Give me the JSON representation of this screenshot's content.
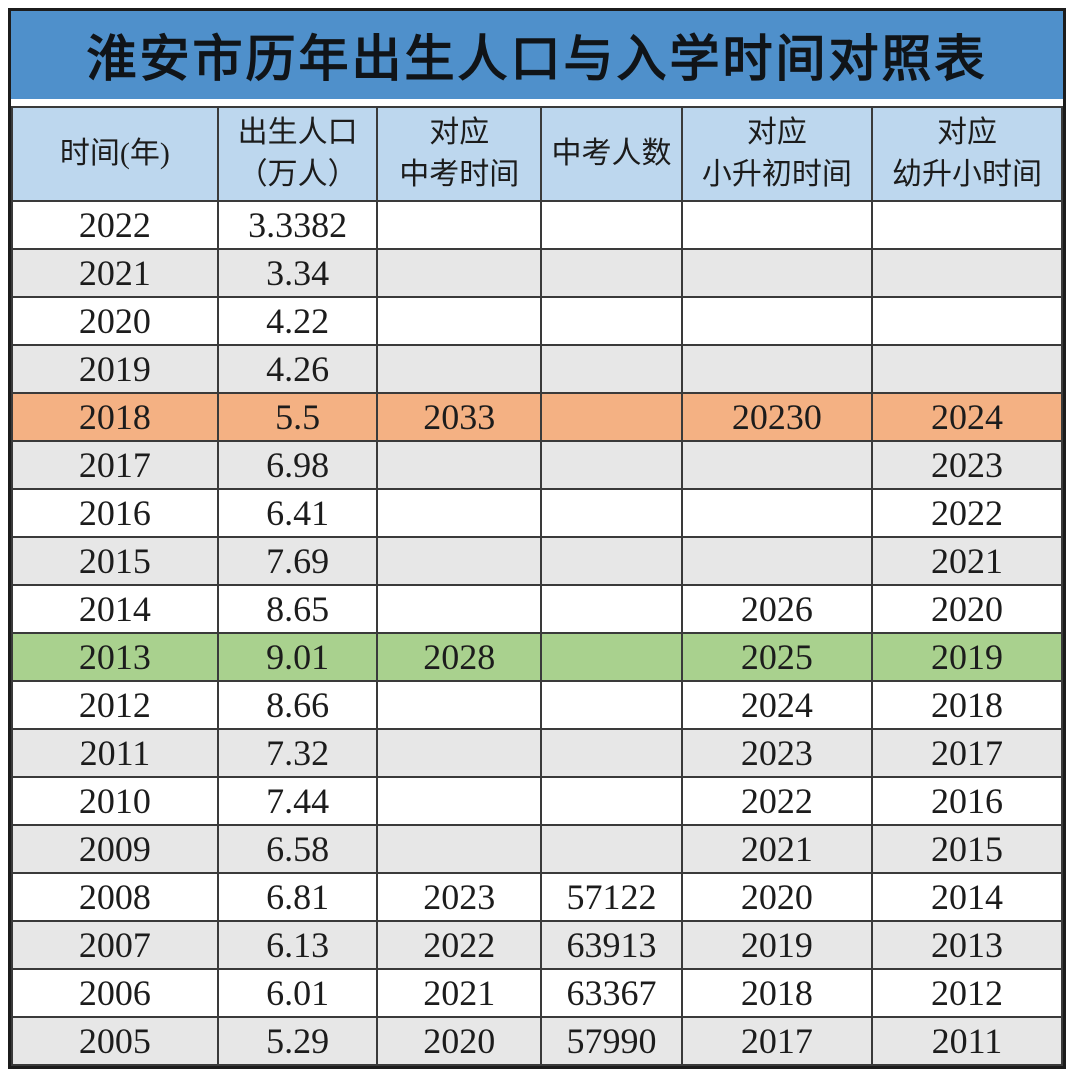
{
  "title": "淮安市历年出生人口与入学时间对照表",
  "colors": {
    "title_bg": "#4f90cb",
    "header_bg": "#bdd7ee",
    "stripe_bg": "#e7e7e7",
    "highlight_orange": "#f4b183",
    "highlight_green": "#a9d18e",
    "border": "#3a3a3a"
  },
  "chart_data": {
    "type": "table",
    "title": "淮安市历年出生人口与入学时间对照表",
    "columns": [
      "时间(年)",
      "出生人口（万人）",
      "对应中考时间",
      "中考人数",
      "对应小升初时间",
      "对应幼升小时间"
    ],
    "header_lines": [
      [
        "时间(年)"
      ],
      [
        "出生人口",
        "（万人）"
      ],
      [
        "对应",
        "中考时间"
      ],
      [
        "中考人数"
      ],
      [
        "对应",
        "小升初时间"
      ],
      [
        "对应",
        "幼升小时间"
      ]
    ],
    "column_ids": [
      "year",
      "birth-population",
      "zhongkao-year",
      "zhongkao-count",
      "xiaoshengchu-year",
      "youshengxiao-year"
    ],
    "rows": [
      {
        "cells": [
          "2022",
          "3.3382",
          "",
          "",
          "",
          ""
        ],
        "highlight": ""
      },
      {
        "cells": [
          "2021",
          "3.34",
          "",
          "",
          "",
          ""
        ],
        "highlight": ""
      },
      {
        "cells": [
          "2020",
          "4.22",
          "",
          "",
          "",
          ""
        ],
        "highlight": ""
      },
      {
        "cells": [
          "2019",
          "4.26",
          "",
          "",
          "",
          ""
        ],
        "highlight": ""
      },
      {
        "cells": [
          "2018",
          "5.5",
          "2033",
          "",
          "20230",
          "2024"
        ],
        "highlight": "orange"
      },
      {
        "cells": [
          "2017",
          "6.98",
          "",
          "",
          "",
          "2023"
        ],
        "highlight": ""
      },
      {
        "cells": [
          "2016",
          "6.41",
          "",
          "",
          "",
          "2022"
        ],
        "highlight": ""
      },
      {
        "cells": [
          "2015",
          "7.69",
          "",
          "",
          "",
          "2021"
        ],
        "highlight": ""
      },
      {
        "cells": [
          "2014",
          "8.65",
          "",
          "",
          "2026",
          "2020"
        ],
        "highlight": ""
      },
      {
        "cells": [
          "2013",
          "9.01",
          "2028",
          "",
          "2025",
          "2019"
        ],
        "highlight": "green"
      },
      {
        "cells": [
          "2012",
          "8.66",
          "",
          "",
          "2024",
          "2018"
        ],
        "highlight": ""
      },
      {
        "cells": [
          "2011",
          "7.32",
          "",
          "",
          "2023",
          "2017"
        ],
        "highlight": ""
      },
      {
        "cells": [
          "2010",
          "7.44",
          "",
          "",
          "2022",
          "2016"
        ],
        "highlight": ""
      },
      {
        "cells": [
          "2009",
          "6.58",
          "",
          "",
          "2021",
          "2015"
        ],
        "highlight": ""
      },
      {
        "cells": [
          "2008",
          "6.81",
          "2023",
          "57122",
          "2020",
          "2014"
        ],
        "highlight": ""
      },
      {
        "cells": [
          "2007",
          "6.13",
          "2022",
          "63913",
          "2019",
          "2013"
        ],
        "highlight": ""
      },
      {
        "cells": [
          "2006",
          "6.01",
          "2021",
          "63367",
          "2018",
          "2012"
        ],
        "highlight": ""
      },
      {
        "cells": [
          "2005",
          "5.29",
          "2020",
          "57990",
          "2017",
          "2011"
        ],
        "highlight": ""
      }
    ]
  }
}
